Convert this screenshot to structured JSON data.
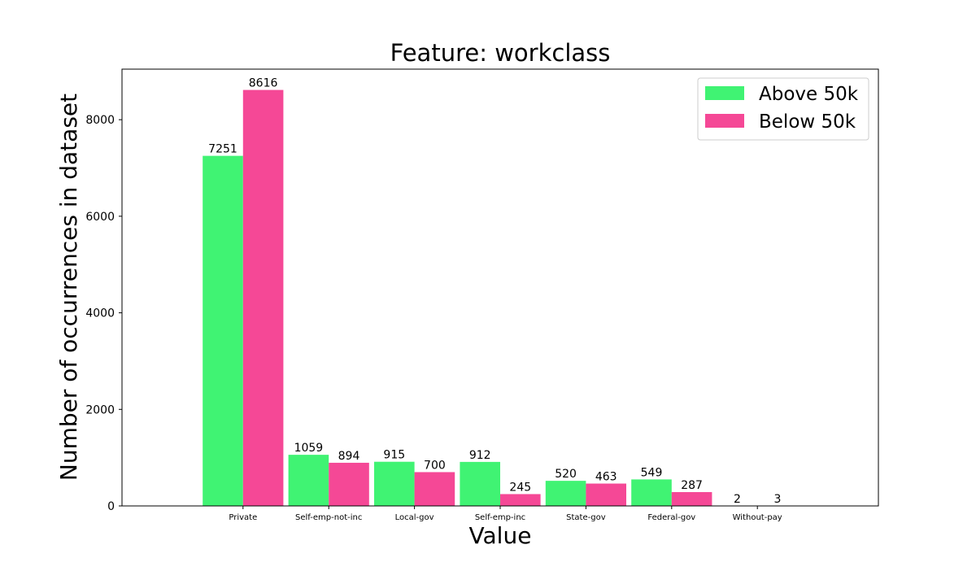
{
  "chart_data": {
    "type": "bar",
    "title": "Feature: workclass",
    "xlabel": "Value",
    "ylabel": "Number of occurrences in dataset",
    "categories": [
      "Private",
      "Self-emp-not-inc",
      "Local-gov",
      "Self-emp-inc",
      "State-gov",
      "Federal-gov",
      "Without-pay"
    ],
    "series": [
      {
        "name": "Above 50k",
        "color": "#40f373",
        "values": [
          7251,
          1059,
          915,
          912,
          520,
          549,
          2
        ]
      },
      {
        "name": "Below 50k",
        "color": "#f54896",
        "values": [
          8616,
          894,
          700,
          245,
          463,
          287,
          3
        ]
      }
    ],
    "yticks": [
      0,
      2000,
      4000,
      6000,
      8000
    ],
    "ylim": [
      0,
      9047
    ],
    "grid": false,
    "legend_position": "top-right"
  }
}
